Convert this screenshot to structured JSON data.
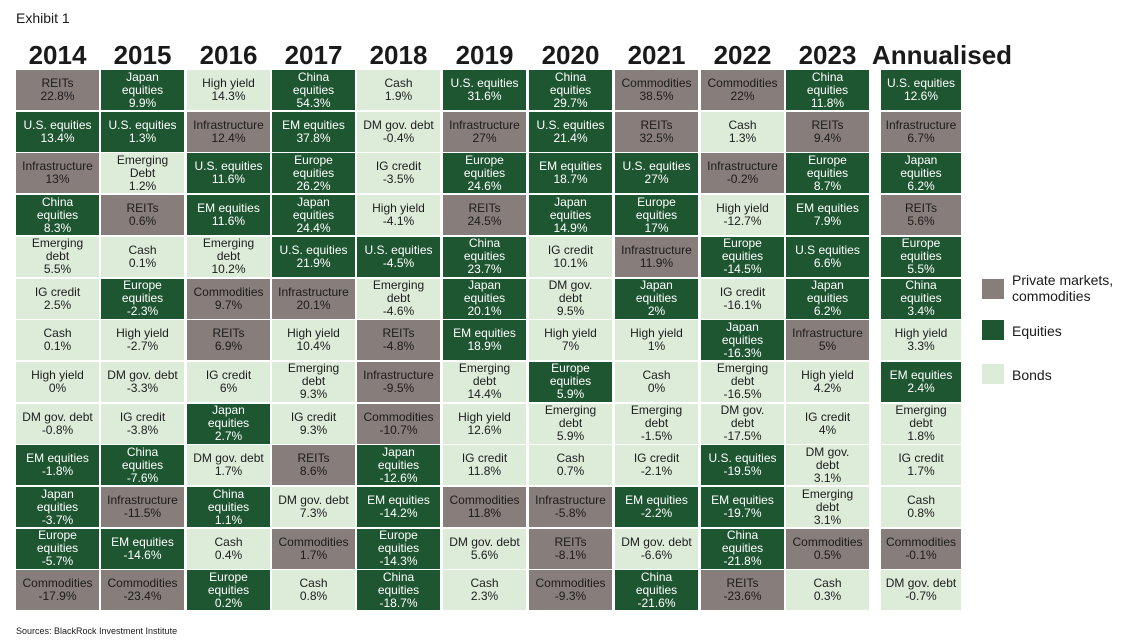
{
  "exhibit_label": "Exhibit 1",
  "source": "Sources: BlackRock Investment Institute",
  "colors": {
    "private": "#877d7b",
    "equity": "#1e5631",
    "bond": "#dcecd9"
  },
  "legend": [
    {
      "cat": "private",
      "label": "Private markets, commodities"
    },
    {
      "cat": "equity",
      "label": "Equities"
    },
    {
      "cat": "bond",
      "label": "Bonds"
    }
  ],
  "chart_data": {
    "type": "table",
    "columns": [
      {
        "header": "2014",
        "cells": [
          {
            "name": "REITs",
            "value": "22.8%",
            "cat": "private"
          },
          {
            "name": "U.S. equities",
            "value": "13.4%",
            "cat": "equity"
          },
          {
            "name": "Infrastructure",
            "value": "13%",
            "cat": "private"
          },
          {
            "name": "China equities",
            "value": "8.3%",
            "cat": "equity"
          },
          {
            "name": "Emerging debt",
            "value": "5.5%",
            "cat": "bond"
          },
          {
            "name": "IG credit",
            "value": "2.5%",
            "cat": "bond"
          },
          {
            "name": "Cash",
            "value": "0.1%",
            "cat": "bond"
          },
          {
            "name": "High yield",
            "value": "0%",
            "cat": "bond"
          },
          {
            "name": "DM gov. debt",
            "value": "-0.8%",
            "cat": "bond"
          },
          {
            "name": "EM equities",
            "value": "-1.8%",
            "cat": "equity"
          },
          {
            "name": "Japan equities",
            "value": "-3.7%",
            "cat": "equity"
          },
          {
            "name": "Europe equities",
            "value": "-5.7%",
            "cat": "equity"
          },
          {
            "name": "Commodities",
            "value": "-17.9%",
            "cat": "private"
          }
        ]
      },
      {
        "header": "2015",
        "cells": [
          {
            "name": "Japan equities",
            "value": "9.9%",
            "cat": "equity"
          },
          {
            "name": "U.S. equities",
            "value": "1.3%",
            "cat": "equity"
          },
          {
            "name": "Emerging Debt",
            "value": "1.2%",
            "cat": "bond"
          },
          {
            "name": "REITs",
            "value": "0.6%",
            "cat": "private"
          },
          {
            "name": "Cash",
            "value": "0.1%",
            "cat": "bond"
          },
          {
            "name": "Europe equities",
            "value": "-2.3%",
            "cat": "equity"
          },
          {
            "name": "High yield",
            "value": "-2.7%",
            "cat": "bond"
          },
          {
            "name": "DM gov. debt",
            "value": "-3.3%",
            "cat": "bond"
          },
          {
            "name": "IG credit",
            "value": "-3.8%",
            "cat": "bond"
          },
          {
            "name": "China equities",
            "value": "-7.6%",
            "cat": "equity"
          },
          {
            "name": "Infrastructure",
            "value": "-11.5%",
            "cat": "private"
          },
          {
            "name": "EM equities",
            "value": "-14.6%",
            "cat": "equity"
          },
          {
            "name": "Commodities",
            "value": "-23.4%",
            "cat": "private"
          }
        ]
      },
      {
        "header": "2016",
        "cells": [
          {
            "name": "High yield",
            "value": "14.3%",
            "cat": "bond"
          },
          {
            "name": "Infrastructure",
            "value": "12.4%",
            "cat": "private"
          },
          {
            "name": "U.S. equities",
            "value": "11.6%",
            "cat": "equity"
          },
          {
            "name": "EM equities",
            "value": "11.6%",
            "cat": "equity"
          },
          {
            "name": "Emerging debt",
            "value": "10.2%",
            "cat": "bond"
          },
          {
            "name": "Commodities",
            "value": "9.7%",
            "cat": "private"
          },
          {
            "name": "REITs",
            "value": "6.9%",
            "cat": "private"
          },
          {
            "name": "IG credit",
            "value": "6%",
            "cat": "bond"
          },
          {
            "name": "Japan equities",
            "value": "2.7%",
            "cat": "equity"
          },
          {
            "name": "DM gov. debt",
            "value": "1.7%",
            "cat": "bond"
          },
          {
            "name": "China equities",
            "value": "1.1%",
            "cat": "equity"
          },
          {
            "name": "Cash",
            "value": "0.4%",
            "cat": "bond"
          },
          {
            "name": "Europe equities",
            "value": "0.2%",
            "cat": "equity"
          }
        ]
      },
      {
        "header": "2017",
        "cells": [
          {
            "name": "China equities",
            "value": "54.3%",
            "cat": "equity"
          },
          {
            "name": "EM equities",
            "value": "37.8%",
            "cat": "equity"
          },
          {
            "name": "Europe equities",
            "value": "26.2%",
            "cat": "equity"
          },
          {
            "name": "Japan equities",
            "value": "24.4%",
            "cat": "equity"
          },
          {
            "name": "U.S. equities",
            "value": "21.9%",
            "cat": "equity"
          },
          {
            "name": "Infrastructure",
            "value": "20.1%",
            "cat": "private"
          },
          {
            "name": "High yield",
            "value": "10.4%",
            "cat": "bond"
          },
          {
            "name": "Emerging debt",
            "value": "9.3%",
            "cat": "bond"
          },
          {
            "name": "IG credit",
            "value": "9.3%",
            "cat": "bond"
          },
          {
            "name": "REITs",
            "value": "8.6%",
            "cat": "private"
          },
          {
            "name": "DM gov. debt",
            "value": "7.3%",
            "cat": "bond"
          },
          {
            "name": "Commodities",
            "value": "1.7%",
            "cat": "private"
          },
          {
            "name": "Cash",
            "value": "0.8%",
            "cat": "bond"
          }
        ]
      },
      {
        "header": "2018",
        "cells": [
          {
            "name": "Cash",
            "value": "1.9%",
            "cat": "bond"
          },
          {
            "name": "DM gov. debt",
            "value": "-0.4%",
            "cat": "bond",
            "inline": true
          },
          {
            "name": "IG credit",
            "value": "-3.5%",
            "cat": "bond"
          },
          {
            "name": "High yield",
            "value": "-4.1%",
            "cat": "bond"
          },
          {
            "name": "U.S. equities",
            "value": "-4.5%",
            "cat": "equity"
          },
          {
            "name": "Emerging debt",
            "value": "-4.6%",
            "cat": "bond"
          },
          {
            "name": "REITs",
            "value": "-4.8%",
            "cat": "private"
          },
          {
            "name": "Infrastructure",
            "value": "-9.5%",
            "cat": "private"
          },
          {
            "name": "Commodities",
            "value": "-10.7%",
            "cat": "private"
          },
          {
            "name": "Japan equities",
            "value": "-12.6%",
            "cat": "equity"
          },
          {
            "name": "EM equities",
            "value": "-14.2%",
            "cat": "equity"
          },
          {
            "name": "Europe equities",
            "value": "-14.3%",
            "cat": "equity"
          },
          {
            "name": "China equities",
            "value": "-18.7%",
            "cat": "equity"
          }
        ]
      },
      {
        "header": "2019",
        "cells": [
          {
            "name": "U.S. equities",
            "value": "31.6%",
            "cat": "equity"
          },
          {
            "name": "Infrastructure",
            "value": "27%",
            "cat": "private"
          },
          {
            "name": "Europe equities",
            "value": "24.6%",
            "cat": "equity"
          },
          {
            "name": "REITs",
            "value": "24.5%",
            "cat": "private"
          },
          {
            "name": "China equities",
            "value": "23.7%",
            "cat": "equity"
          },
          {
            "name": "Japan equities",
            "value": "20.1%",
            "cat": "equity"
          },
          {
            "name": "EM equities",
            "value": "18.9%",
            "cat": "equity"
          },
          {
            "name": "Emerging debt",
            "value": "14.4%",
            "cat": "bond"
          },
          {
            "name": "High yield",
            "value": "12.6%",
            "cat": "bond"
          },
          {
            "name": "IG credit",
            "value": "11.8%",
            "cat": "bond"
          },
          {
            "name": "Commodities",
            "value": "11.8%",
            "cat": "private"
          },
          {
            "name": "DM gov. debt",
            "value": "5.6%",
            "cat": "bond"
          },
          {
            "name": "Cash",
            "value": "2.3%",
            "cat": "bond"
          }
        ]
      },
      {
        "header": "2020",
        "cells": [
          {
            "name": "China equities",
            "value": "29.7%",
            "cat": "equity"
          },
          {
            "name": "U.S. equities",
            "value": "21.4%",
            "cat": "equity"
          },
          {
            "name": "EM equities",
            "value": "18.7%",
            "cat": "equity"
          },
          {
            "name": "Japan equities",
            "value": "14.9%",
            "cat": "equity"
          },
          {
            "name": "IG credit",
            "value": "10.1%",
            "cat": "bond"
          },
          {
            "name": "DM gov. debt",
            "value": "9.5%",
            "cat": "bond",
            "split": "DM gov.|debt"
          },
          {
            "name": "High yield",
            "value": "7%",
            "cat": "bond"
          },
          {
            "name": "Europe equities",
            "value": "5.9%",
            "cat": "equity"
          },
          {
            "name": "Emerging debt",
            "value": "5.9%",
            "cat": "bond"
          },
          {
            "name": "Cash",
            "value": "0.7%",
            "cat": "bond"
          },
          {
            "name": "Infrastructure",
            "value": "-5.8%",
            "cat": "private"
          },
          {
            "name": "REITs",
            "value": "-8.1%",
            "cat": "private"
          },
          {
            "name": "Commodities",
            "value": "-9.3%",
            "cat": "private"
          }
        ]
      },
      {
        "header": "2021",
        "cells": [
          {
            "name": "Commodities",
            "value": "38.5%",
            "cat": "private"
          },
          {
            "name": "REITs",
            "value": "32.5%",
            "cat": "private"
          },
          {
            "name": "U.S. equities",
            "value": "27%",
            "cat": "equity"
          },
          {
            "name": "Europe equities",
            "value": "17%",
            "cat": "equity"
          },
          {
            "name": "Infrastructure",
            "value": "11.9%",
            "cat": "private"
          },
          {
            "name": "Japan equities",
            "value": "2%",
            "cat": "equity"
          },
          {
            "name": "High yield",
            "value": "1%",
            "cat": "bond"
          },
          {
            "name": "Cash",
            "value": "0%",
            "cat": "bond"
          },
          {
            "name": "Emerging debt",
            "value": "-1.5%",
            "cat": "bond"
          },
          {
            "name": "IG credit",
            "value": "-2.1%",
            "cat": "bond"
          },
          {
            "name": "EM equities",
            "value": "-2.2%",
            "cat": "equity"
          },
          {
            "name": "DM gov. debt",
            "value": "-6.6%",
            "cat": "bond"
          },
          {
            "name": "China equities",
            "value": "-21.6%",
            "cat": "equity"
          }
        ]
      },
      {
        "header": "2022",
        "cells": [
          {
            "name": "Commodities",
            "value": "22%",
            "cat": "private"
          },
          {
            "name": "Cash",
            "value": "1.3%",
            "cat": "bond"
          },
          {
            "name": "Infrastructure",
            "value": "-0.2%",
            "cat": "private"
          },
          {
            "name": "High yield",
            "value": "-12.7%",
            "cat": "bond"
          },
          {
            "name": "Europe equities",
            "value": "-14.5%",
            "cat": "equity"
          },
          {
            "name": "IG credit",
            "value": "-16.1%",
            "cat": "bond"
          },
          {
            "name": "Japan equities",
            "value": "-16.3%",
            "cat": "equity"
          },
          {
            "name": "Emerging debt",
            "value": "-16.5%",
            "cat": "bond"
          },
          {
            "name": "DM gov. debt",
            "value": "-17.5%",
            "cat": "bond",
            "split": "DM gov.|debt"
          },
          {
            "name": "U.S. equities",
            "value": "-19.5%",
            "cat": "equity"
          },
          {
            "name": "EM equities",
            "value": "-19.7%",
            "cat": "equity"
          },
          {
            "name": "China equities",
            "value": "-21.8%",
            "cat": "equity"
          },
          {
            "name": "REITs",
            "value": "-23.6%",
            "cat": "private"
          }
        ]
      },
      {
        "header": "2023",
        "cells": [
          {
            "name": "China equities",
            "value": "11.8%",
            "cat": "equity"
          },
          {
            "name": "REITs",
            "value": "9.4%",
            "cat": "private"
          },
          {
            "name": "Europe equities",
            "value": "8.7%",
            "cat": "equity"
          },
          {
            "name": "EM equities",
            "value": "7.9%",
            "cat": "equity"
          },
          {
            "name": "U.S equities",
            "value": "6.6%",
            "cat": "equity"
          },
          {
            "name": "Japan equities",
            "value": "6.2%",
            "cat": "equity"
          },
          {
            "name": "Infrastructure",
            "value": "5%",
            "cat": "private"
          },
          {
            "name": "High yield",
            "value": "4.2%",
            "cat": "bond"
          },
          {
            "name": "IG credit",
            "value": "4%",
            "cat": "bond"
          },
          {
            "name": "DM gov. debt",
            "value": "3.1%",
            "cat": "bond",
            "split": "DM gov.|debt"
          },
          {
            "name": "Emerging debt",
            "value": "3.1%",
            "cat": "bond"
          },
          {
            "name": "Commodities",
            "value": "0.5%",
            "cat": "private"
          },
          {
            "name": "Cash",
            "value": "0.3%",
            "cat": "bond"
          }
        ]
      },
      {
        "header": "Annualised",
        "cells": [
          {
            "name": "U.S. equities",
            "value": "12.6%",
            "cat": "equity"
          },
          {
            "name": "Infrastructure",
            "value": "6.7%",
            "cat": "private"
          },
          {
            "name": "Japan equities",
            "value": "6.2%",
            "cat": "equity"
          },
          {
            "name": "REITs",
            "value": "5.6%",
            "cat": "private"
          },
          {
            "name": "Europe equities",
            "value": "5.5%",
            "cat": "equity"
          },
          {
            "name": "China equities",
            "value": "3.4%",
            "cat": "equity"
          },
          {
            "name": "High yield",
            "value": "3.3%",
            "cat": "bond"
          },
          {
            "name": "EM equities",
            "value": "2.4%",
            "cat": "equity"
          },
          {
            "name": "Emerging debt",
            "value": "1.8%",
            "cat": "bond"
          },
          {
            "name": "IG credit",
            "value": "1.7%",
            "cat": "bond"
          },
          {
            "name": "Cash",
            "value": "0.8%",
            "cat": "bond"
          },
          {
            "name": "Commodities",
            "value": "-0.1%",
            "cat": "private"
          },
          {
            "name": "DM gov. debt",
            "value": "-0.7%",
            "cat": "bond"
          }
        ]
      }
    ]
  }
}
